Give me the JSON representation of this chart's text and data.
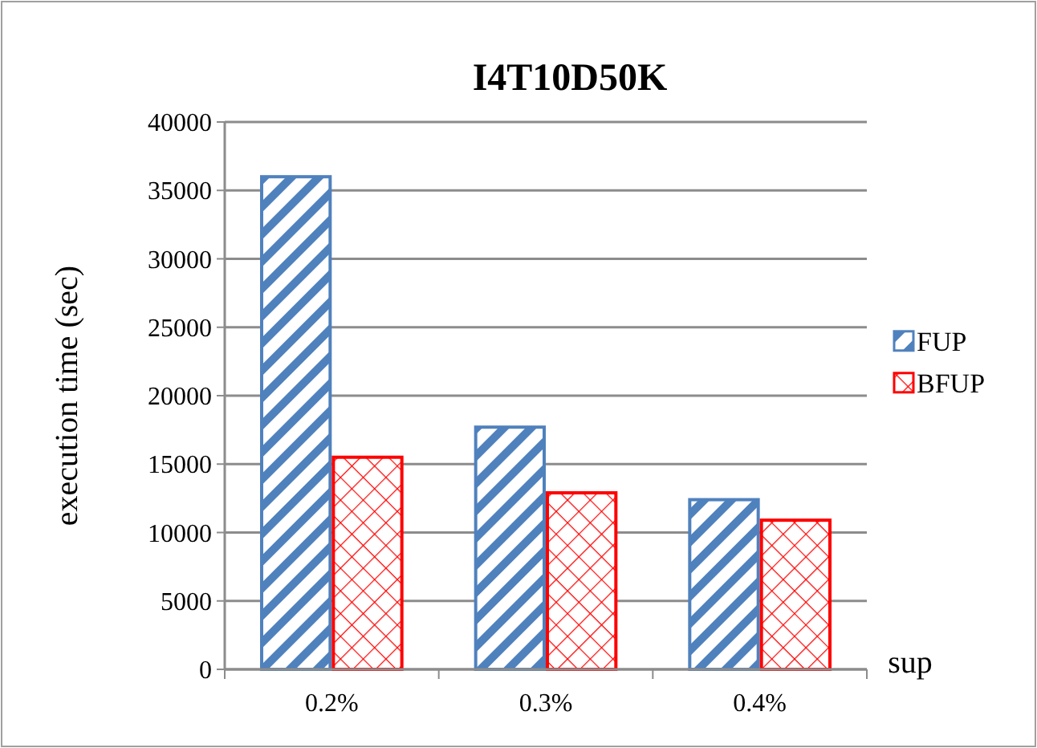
{
  "chart_data": {
    "type": "bar",
    "title": "I4T10D50K",
    "xlabel": "sup",
    "ylabel": "execution time (sec)",
    "categories": [
      "0.2%",
      "0.3%",
      "0.4%"
    ],
    "series": [
      {
        "name": "FUP",
        "color": "#4f81bd",
        "values": [
          36000,
          17700,
          12400
        ]
      },
      {
        "name": "BFUP",
        "color": "#ff0000",
        "values": [
          15500,
          12900,
          10900
        ]
      }
    ],
    "ylim": [
      0,
      40000
    ],
    "yticks": [
      0,
      5000,
      10000,
      15000,
      20000,
      25000,
      30000,
      35000,
      40000
    ],
    "grid": "y",
    "legend": "right"
  }
}
